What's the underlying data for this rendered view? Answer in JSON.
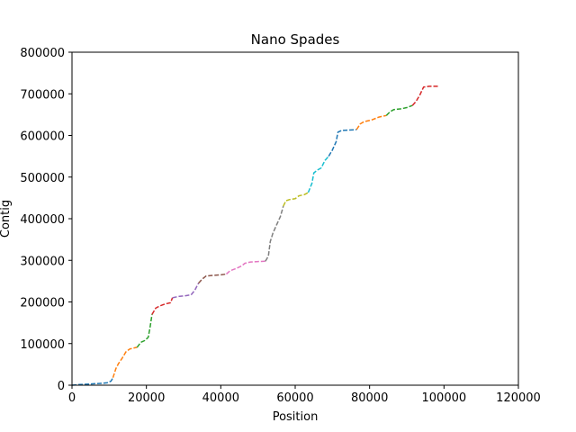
{
  "chart_data": {
    "type": "line",
    "title": "Nano Spades",
    "xlabel": "Position",
    "ylabel": "Contig",
    "xlim": [
      0,
      120000
    ],
    "ylim": [
      0,
      800000
    ],
    "xticks": [
      0,
      20000,
      40000,
      60000,
      80000,
      100000,
      120000
    ],
    "xtick_labels": [
      "0",
      "20000",
      "40000",
      "60000",
      "80000",
      "100000",
      "120000"
    ],
    "yticks": [
      0,
      100000,
      200000,
      300000,
      400000,
      500000,
      600000,
      700000,
      800000
    ],
    "ytick_labels": [
      "0",
      "100000",
      "200000",
      "300000",
      "400000",
      "500000",
      "600000",
      "700000",
      "800000"
    ],
    "grid": false,
    "line_style": "dashed",
    "series": [
      {
        "color": "#1f77b4",
        "x": [
          0,
          2000,
          5000,
          8000,
          9500,
          10500,
          11000
        ],
        "y": [
          0,
          1500,
          3000,
          4500,
          6000,
          10000,
          18000
        ]
      },
      {
        "color": "#ff7f0e",
        "x": [
          11000,
          11800,
          12500,
          13500,
          14500,
          15500,
          16500,
          17500
        ],
        "y": [
          18000,
          40000,
          52000,
          65000,
          80000,
          87000,
          89000,
          91000
        ]
      },
      {
        "color": "#2ca02c",
        "x": [
          17500,
          18500,
          19500,
          20500,
          21000,
          21500
        ],
        "y": [
          91000,
          103000,
          107000,
          115000,
          140000,
          170000
        ]
      },
      {
        "color": "#d62728",
        "x": [
          21500,
          22500,
          23500,
          25000,
          26500,
          27000
        ],
        "y": [
          170000,
          185000,
          190000,
          195000,
          198000,
          210000
        ]
      },
      {
        "color": "#9467bd",
        "x": [
          27000,
          28500,
          30500,
          32000,
          33000,
          34000
        ],
        "y": [
          210000,
          213000,
          215000,
          217000,
          228000,
          245000
        ]
      },
      {
        "color": "#8c564b",
        "x": [
          34000,
          35000,
          36000,
          38000,
          40000,
          41500
        ],
        "y": [
          245000,
          255000,
          262000,
          264000,
          265000,
          267000
        ]
      },
      {
        "color": "#e377c2",
        "x": [
          41500,
          42500,
          44000,
          45500,
          46500,
          48000,
          50000,
          52000
        ],
        "y": [
          267000,
          275000,
          280000,
          286000,
          293000,
          296000,
          297000,
          298000
        ]
      },
      {
        "color": "#7f7f7f",
        "x": [
          52000,
          52800,
          53300,
          54000,
          55000,
          56000,
          56800
        ],
        "y": [
          298000,
          310000,
          345000,
          365000,
          385000,
          405000,
          430000
        ]
      },
      {
        "color": "#bcbd22",
        "x": [
          56800,
          57500,
          58500,
          60000,
          61000,
          62500,
          63500
        ],
        "y": [
          430000,
          443000,
          446000,
          448000,
          455000,
          458000,
          463000
        ]
      },
      {
        "color": "#17becf",
        "x": [
          63500,
          64500,
          65000,
          66000,
          67000,
          68000,
          69000
        ],
        "y": [
          463000,
          485000,
          510000,
          517000,
          522000,
          540000,
          550000
        ]
      },
      {
        "color": "#1f77b4",
        "x": [
          69000,
          70000,
          71000,
          71500,
          72500,
          74500,
          76500
        ],
        "y": [
          550000,
          565000,
          585000,
          608000,
          612000,
          613000,
          614000
        ]
      },
      {
        "color": "#ff7f0e",
        "x": [
          76500,
          77500,
          78500,
          80500,
          82500,
          84500
        ],
        "y": [
          614000,
          628000,
          633000,
          637000,
          644000,
          648000
        ]
      },
      {
        "color": "#2ca02c",
        "x": [
          84500,
          85500,
          86500,
          88500,
          90000,
          91500
        ],
        "y": [
          648000,
          657000,
          662000,
          664000,
          667000,
          672000
        ]
      },
      {
        "color": "#d62728",
        "x": [
          91500,
          92500,
          93500,
          94500,
          96000,
          98500
        ],
        "y": [
          672000,
          682000,
          697000,
          716000,
          718000,
          718000
        ]
      }
    ]
  }
}
